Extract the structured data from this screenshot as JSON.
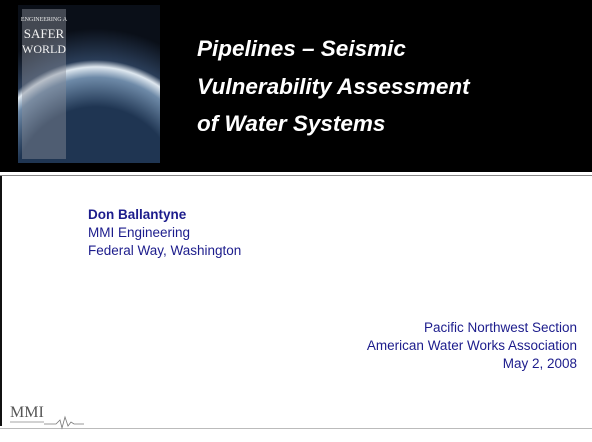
{
  "header": {
    "image_text": [
      "ENGINEERING A",
      "SAFER",
      "WORLD"
    ],
    "title": [
      "Pipelines – Seismic",
      "Vulnerability Assessment",
      "of Water Systems"
    ]
  },
  "author": {
    "name": "Don Ballantyne",
    "organization": "MMI Engineering",
    "location": "Federal Way, Washington"
  },
  "event": [
    "Pacific Northwest Section",
    "American Water Works Association",
    "May 2, 2008"
  ],
  "footer": {
    "logo": "MMI"
  }
}
